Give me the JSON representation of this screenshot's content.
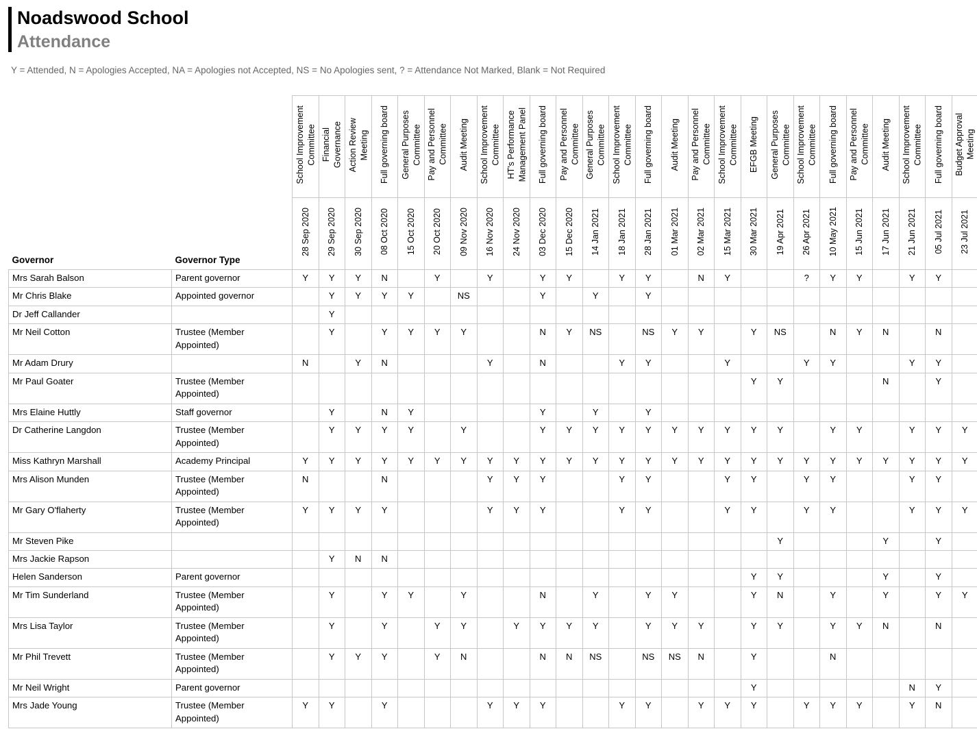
{
  "header": {
    "school_name": "Noadswood School",
    "page_title": "Attendance",
    "legend": "Y = Attended, N = Apologies Accepted, NA = Apologies not Accepted, NS = No Apologies sent, ? = Attendance Not Marked, Blank = Not Required"
  },
  "table": {
    "governor_col_header": "Governor",
    "governor_type_col_header": "Governor Type",
    "meetings": [
      {
        "type": "School Improvement\nCommittee",
        "date": "28 Sep 2020"
      },
      {
        "type": "Financial\nGovernance",
        "date": "29 Sep 2020"
      },
      {
        "type": "Action Review\nMeeting",
        "date": "30 Sep 2020"
      },
      {
        "type": "Full governing board",
        "date": "08 Oct 2020"
      },
      {
        "type": "General Purposes\nCommittee",
        "date": "15 Oct 2020"
      },
      {
        "type": "Pay and Personnel\nCommittee",
        "date": "20 Oct 2020"
      },
      {
        "type": "Audit Meeting",
        "date": "09 Nov 2020"
      },
      {
        "type": "School Improvement\nCommittee",
        "date": "16 Nov 2020"
      },
      {
        "type": "HT's Performance\nManagement Panel",
        "date": "24 Nov 2020"
      },
      {
        "type": "Full governing board",
        "date": "03 Dec 2020"
      },
      {
        "type": "Pay and Personnel\nCommittee",
        "date": "15 Dec 2020"
      },
      {
        "type": "General Purposes\nCommittee",
        "date": "14 Jan 2021"
      },
      {
        "type": "School Improvement\nCommittee",
        "date": "18 Jan 2021"
      },
      {
        "type": "Full governing board",
        "date": "28 Jan 2021"
      },
      {
        "type": "Audit Meeting",
        "date": "01 Mar 2021"
      },
      {
        "type": "Pay and Personnel\nCommittee",
        "date": "02 Mar 2021"
      },
      {
        "type": "School Improvement\nCommittee",
        "date": "15 Mar 2021"
      },
      {
        "type": "EFGB Meeting",
        "date": "30 Mar 2021"
      },
      {
        "type": "General Purposes\nCommittee",
        "date": "19 Apr 2021"
      },
      {
        "type": "School Improvement\nCommittee",
        "date": "26 Apr 2021"
      },
      {
        "type": "Full governing board",
        "date": "10 May 2021"
      },
      {
        "type": "Pay and Personnel\nCommittee",
        "date": "15 Jun 2021"
      },
      {
        "type": "Audit Meeting",
        "date": "17 Jun 2021"
      },
      {
        "type": "School Improvement\nCommittee",
        "date": "21 Jun 2021"
      },
      {
        "type": "Full governing board",
        "date": "05 Jul 2021"
      },
      {
        "type": "Budget Approval\nMeeting",
        "date": "23 Jul 2021"
      }
    ],
    "governors": [
      {
        "name": "Mrs Sarah Balson",
        "type": "Parent governor",
        "attendance": [
          "Y",
          "Y",
          "Y",
          "N",
          "",
          "Y",
          "",
          "Y",
          "",
          "Y",
          "Y",
          "",
          "Y",
          "Y",
          "",
          "N",
          "Y",
          "",
          "",
          "?",
          "Y",
          "Y",
          "",
          "Y",
          "Y",
          ""
        ]
      },
      {
        "name": "Mr Chris Blake",
        "type": "Appointed governor",
        "attendance": [
          "",
          "Y",
          "Y",
          "Y",
          "Y",
          "",
          "NS",
          "",
          "",
          "Y",
          "",
          "Y",
          "",
          "Y",
          "",
          "",
          "",
          "",
          "",
          "",
          "",
          "",
          "",
          "",
          "",
          ""
        ]
      },
      {
        "name": "Dr Jeff Callander",
        "type": "",
        "attendance": [
          "",
          "Y",
          "",
          "",
          "",
          "",
          "",
          "",
          "",
          "",
          "",
          "",
          "",
          "",
          "",
          "",
          "",
          "",
          "",
          "",
          "",
          "",
          "",
          "",
          "",
          ""
        ]
      },
      {
        "name": "Mr Neil Cotton",
        "type": "Trustee (Member\nAppointed)",
        "attendance": [
          "",
          "Y",
          "",
          "Y",
          "Y",
          "Y",
          "Y",
          "",
          "",
          "N",
          "Y",
          "NS",
          "",
          "NS",
          "Y",
          "Y",
          "",
          "Y",
          "NS",
          "",
          "N",
          "Y",
          "N",
          "",
          "N",
          ""
        ]
      },
      {
        "name": "Mr Adam Drury",
        "type": "",
        "attendance": [
          "N",
          "",
          "Y",
          "N",
          "",
          "",
          "",
          "Y",
          "",
          "N",
          "",
          "",
          "Y",
          "Y",
          "",
          "",
          "Y",
          "",
          "",
          "Y",
          "Y",
          "",
          "",
          "Y",
          "Y",
          ""
        ]
      },
      {
        "name": "Mr Paul Goater",
        "type": "Trustee (Member\nAppointed)",
        "attendance": [
          "",
          "",
          "",
          "",
          "",
          "",
          "",
          "",
          "",
          "",
          "",
          "",
          "",
          "",
          "",
          "",
          "",
          "Y",
          "Y",
          "",
          "",
          "",
          "N",
          "",
          "Y",
          ""
        ]
      },
      {
        "name": "Mrs Elaine Huttly",
        "type": "Staff governor",
        "attendance": [
          "",
          "Y",
          "",
          "N",
          "Y",
          "",
          "",
          "",
          "",
          "Y",
          "",
          "Y",
          "",
          "Y",
          "",
          "",
          "",
          "",
          "",
          "",
          "",
          "",
          "",
          "",
          "",
          ""
        ]
      },
      {
        "name": "Dr Catherine Langdon",
        "type": "Trustee (Member\nAppointed)",
        "attendance": [
          "",
          "Y",
          "Y",
          "Y",
          "Y",
          "",
          "Y",
          "",
          "",
          "Y",
          "Y",
          "Y",
          "Y",
          "Y",
          "Y",
          "Y",
          "Y",
          "Y",
          "Y",
          "",
          "Y",
          "Y",
          "",
          "Y",
          "Y",
          "Y"
        ]
      },
      {
        "name": "Miss Kathryn Marshall",
        "type": "Academy Principal",
        "attendance": [
          "Y",
          "Y",
          "Y",
          "Y",
          "Y",
          "Y",
          "Y",
          "Y",
          "Y",
          "Y",
          "Y",
          "Y",
          "Y",
          "Y",
          "Y",
          "Y",
          "Y",
          "Y",
          "Y",
          "Y",
          "Y",
          "Y",
          "Y",
          "Y",
          "Y",
          "Y"
        ]
      },
      {
        "name": "Mrs Alison Munden",
        "type": "Trustee (Member\nAppointed)",
        "attendance": [
          "N",
          "",
          "",
          "N",
          "",
          "",
          "",
          "Y",
          "Y",
          "Y",
          "",
          "",
          "Y",
          "Y",
          "",
          "",
          "Y",
          "Y",
          "",
          "Y",
          "Y",
          "",
          "",
          "Y",
          "Y",
          ""
        ]
      },
      {
        "name": "Mr Gary O'flaherty",
        "type": "Trustee (Member\nAppointed)",
        "attendance": [
          "Y",
          "Y",
          "Y",
          "Y",
          "",
          "",
          "",
          "Y",
          "Y",
          "Y",
          "",
          "",
          "Y",
          "Y",
          "",
          "",
          "Y",
          "Y",
          "",
          "Y",
          "Y",
          "",
          "",
          "Y",
          "Y",
          "Y"
        ]
      },
      {
        "name": "Mr Steven Pike",
        "type": "",
        "attendance": [
          "",
          "",
          "",
          "",
          "",
          "",
          "",
          "",
          "",
          "",
          "",
          "",
          "",
          "",
          "",
          "",
          "",
          "",
          "Y",
          "",
          "",
          "",
          "Y",
          "",
          "Y",
          ""
        ]
      },
      {
        "name": "Mrs Jackie Rapson",
        "type": "",
        "attendance": [
          "",
          "Y",
          "N",
          "N",
          "",
          "",
          "",
          "",
          "",
          "",
          "",
          "",
          "",
          "",
          "",
          "",
          "",
          "",
          "",
          "",
          "",
          "",
          "",
          "",
          "",
          ""
        ]
      },
      {
        "name": "Helen Sanderson",
        "type": "Parent governor",
        "attendance": [
          "",
          "",
          "",
          "",
          "",
          "",
          "",
          "",
          "",
          "",
          "",
          "",
          "",
          "",
          "",
          "",
          "",
          "Y",
          "Y",
          "",
          "",
          "",
          "Y",
          "",
          "Y",
          ""
        ]
      },
      {
        "name": "Mr Tim Sunderland",
        "type": "Trustee (Member\nAppointed)",
        "attendance": [
          "",
          "Y",
          "",
          "Y",
          "Y",
          "",
          "Y",
          "",
          "",
          "N",
          "",
          "Y",
          "",
          "Y",
          "Y",
          "",
          "",
          "Y",
          "N",
          "",
          "Y",
          "",
          "Y",
          "",
          "Y",
          "Y"
        ]
      },
      {
        "name": "Mrs Lisa Taylor",
        "type": "Trustee (Member\nAppointed)",
        "attendance": [
          "",
          "Y",
          "",
          "Y",
          "",
          "Y",
          "Y",
          "",
          "Y",
          "Y",
          "Y",
          "Y",
          "",
          "Y",
          "Y",
          "Y",
          "",
          "Y",
          "Y",
          "",
          "Y",
          "Y",
          "N",
          "",
          "N",
          ""
        ]
      },
      {
        "name": "Mr Phil Trevett",
        "type": "Trustee (Member\nAppointed)",
        "attendance": [
          "",
          "Y",
          "Y",
          "Y",
          "",
          "Y",
          "N",
          "",
          "",
          "N",
          "N",
          "NS",
          "",
          "NS",
          "NS",
          "N",
          "",
          "Y",
          "",
          "",
          "N",
          "",
          "",
          "",
          "",
          ""
        ]
      },
      {
        "name": "Mr Neil Wright",
        "type": "Parent governor",
        "attendance": [
          "",
          "",
          "",
          "",
          "",
          "",
          "",
          "",
          "",
          "",
          "",
          "",
          "",
          "",
          "",
          "",
          "",
          "Y",
          "",
          "",
          "",
          "",
          "",
          "N",
          "Y",
          ""
        ]
      },
      {
        "name": "Mrs Jade Young",
        "type": "Trustee (Member\nAppointed)",
        "attendance": [
          "Y",
          "Y",
          "",
          "Y",
          "",
          "",
          "",
          "Y",
          "Y",
          "Y",
          "",
          "",
          "Y",
          "Y",
          "",
          "Y",
          "Y",
          "Y",
          "",
          "Y",
          "Y",
          "Y",
          "",
          "Y",
          "N",
          ""
        ]
      }
    ]
  }
}
